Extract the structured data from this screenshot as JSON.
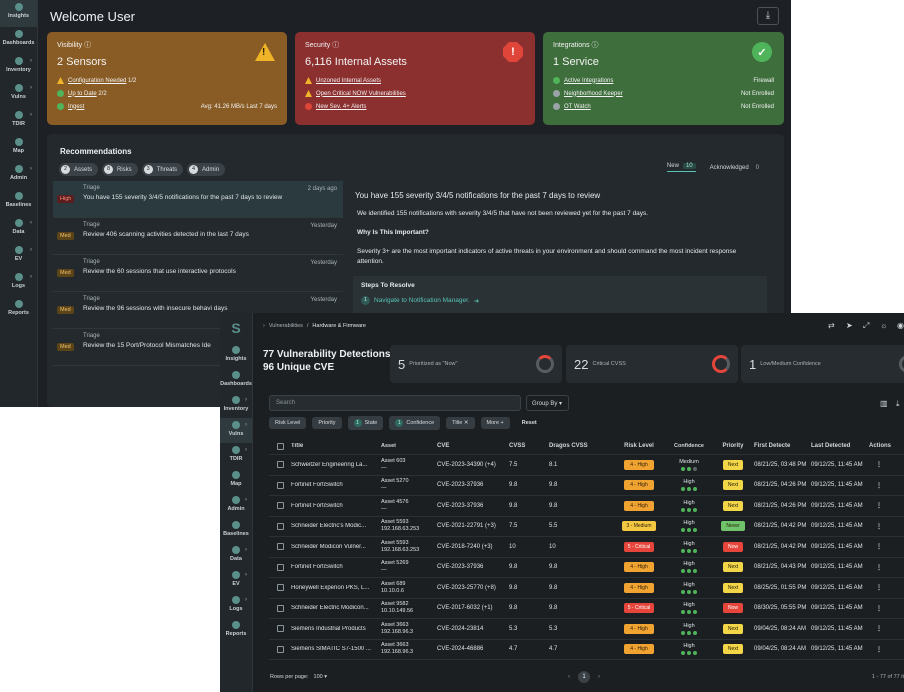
{
  "win1": {
    "nav": [
      "Insights",
      "Dashboards",
      "Inventory",
      "Vulns",
      "TDIR",
      "Map",
      "Admin",
      "Baselines",
      "Data",
      "EV",
      "Logs",
      "Reports"
    ],
    "title": "Welcome User",
    "visibility": {
      "label": "Visibility",
      "big": "2 Sensors",
      "rows": [
        {
          "text": "Configuration Needed",
          "extra": "1/2",
          "right": ""
        },
        {
          "text": "Up to Date",
          "extra": "2/2",
          "right": ""
        },
        {
          "text": "Ingest",
          "extra": "",
          "right": "Avg: 41.26 MB/s Last 7 days"
        }
      ]
    },
    "security": {
      "label": "Security",
      "big": "6,116 Internal Assets",
      "rows": [
        "Unzoned Internal Assets",
        "Open Critical NOW Vulnerabilities",
        "New Sev. 4+ Alerts"
      ]
    },
    "integrations": {
      "label": "Integrations",
      "big": "1 Service",
      "rows": [
        {
          "text": "Active Integrations",
          "right": "Firewall"
        },
        {
          "text": "Neighborhood Keeper",
          "right": "Not Enrolled"
        },
        {
          "text": "OT Watch",
          "right": "Not Enrolled"
        }
      ]
    },
    "recommendations": {
      "title": "Recommendations",
      "chips": [
        {
          "n": "2",
          "label": "Assets"
        },
        {
          "n": "8",
          "label": "Risks"
        },
        {
          "n": "3",
          "label": "Threats"
        },
        {
          "n": "4",
          "label": "Admin"
        }
      ],
      "tab_new": "New",
      "tab_new_count": "10",
      "tab_ack": "Acknowledged",
      "tab_ack_count": "0",
      "items": [
        {
          "kind": "Triage",
          "time": "2 days ago",
          "tag": "High",
          "text": "You have 155 severity 3/4/5 notifications for the past 7 days to review"
        },
        {
          "kind": "Triage",
          "time": "Yesterday",
          "tag": "Med",
          "text": "Review 406 scanning activities detected in the last 7 days"
        },
        {
          "kind": "Triage",
          "time": "Yesterday",
          "tag": "Med",
          "text": "Review the 60 sessions that use interactive protocols"
        },
        {
          "kind": "Triage",
          "time": "Yesterday",
          "tag": "Med",
          "text": "Review the 96 sessions with insecure behavi days"
        },
        {
          "kind": "Triage",
          "time": "Yesterday",
          "tag": "Med",
          "text": "Review the 15 Port/Protocol Mismatches Ide"
        }
      ],
      "detail": {
        "heading": "You have 155 severity 3/4/5 notifications for the past 7 days to review",
        "p1": "We identified 155 notifications with severity 3/4/5 that have not been reviewed yet for the past 7 days.",
        "why": "Why Is This Important?",
        "p2": "Severity 3+ are the most important indicators of active threats in your environment and should command the most incident response attention.",
        "steps_title": "Steps To Resolve",
        "step1": "Navigate to Notification Manager."
      }
    }
  },
  "win2": {
    "nav": [
      "Insights",
      "Dashboards",
      "Inventory",
      "Vulns",
      "TDIR",
      "Map",
      "Admin",
      "Baselines",
      "Data",
      "EV",
      "Logs",
      "Reports"
    ],
    "breadcrumb": [
      "Vulnerabilities",
      "/",
      "Hardware & Firmware"
    ],
    "heading1": "77 Vulnerability Detections",
    "heading2": "96 Unique CVE",
    "stats": [
      {
        "n": "5",
        "label": "Prioritized as \"Now\""
      },
      {
        "n": "22",
        "label": "Critical CVSS"
      },
      {
        "n": "1",
        "label": "Low/Medium Confidence"
      }
    ],
    "search_placeholder": "Search",
    "group_by": "Group By ▾",
    "filters": [
      {
        "n": "",
        "label": "Risk Level"
      },
      {
        "n": "",
        "label": "Priority"
      },
      {
        "n": "1",
        "label": "State"
      },
      {
        "n": "1",
        "label": "Confidence"
      },
      {
        "n": "",
        "label": "Title ✕"
      },
      {
        "n": "",
        "label": "More +"
      }
    ],
    "reset": "Reset",
    "columns": [
      "Title",
      "Asset",
      "CVE",
      "CVSS",
      "Dragos CVSS",
      "Risk Level",
      "Confidence",
      "Priority",
      "First Detecte",
      "Last Detected",
      "Actions"
    ],
    "rows": [
      {
        "title": "Schweitzer Engineering La...",
        "asset": "Asset 603",
        "ip": "—",
        "cve": "CVE-2023-34390 (+4)",
        "cvss": "7.5",
        "dcvss": "8.1",
        "risk": "4 - High",
        "conf": "Medium",
        "dots": 2,
        "prio": "Next",
        "first": "08/21/25, 03:48 PM",
        "last": "09/12/25, 11:45 AM"
      },
      {
        "title": "Fortinet FortiSwitch",
        "asset": "Asset 5270",
        "ip": "—",
        "cve": "CVE-2023-37936",
        "cvss": "9.8",
        "dcvss": "9.8",
        "risk": "4 - High",
        "conf": "High",
        "dots": 3,
        "prio": "Next",
        "first": "08/21/25, 04:26 PM",
        "last": "09/12/25, 11:45 AM"
      },
      {
        "title": "Fortinet FortiSwitch",
        "asset": "Asset 4576",
        "ip": "—",
        "cve": "CVE-2023-37936",
        "cvss": "9.8",
        "dcvss": "9.8",
        "risk": "4 - High",
        "conf": "High",
        "dots": 3,
        "prio": "Next",
        "first": "08/21/25, 04:26 PM",
        "last": "09/12/25, 11:45 AM"
      },
      {
        "title": "Schneider Electric's Modic...",
        "asset": "Asset 5593",
        "ip": "192.168.63.253",
        "cve": "CVE-2021-22791 (+3)",
        "cvss": "7.5",
        "dcvss": "5.5",
        "risk": "3 - Medium",
        "conf": "High",
        "dots": 3,
        "prio": "Never",
        "first": "08/21/25, 04:42 PM",
        "last": "09/12/25, 11:45 AM"
      },
      {
        "title": "Schneider Modicon Vulner...",
        "asset": "Asset 5593",
        "ip": "192.168.63.253",
        "cve": "CVE-2018-7240 (+3)",
        "cvss": "10",
        "dcvss": "10",
        "risk": "5 - Critical",
        "conf": "High",
        "dots": 3,
        "prio": "Now",
        "first": "08/21/25, 04:42 PM",
        "last": "09/12/25, 11:45 AM"
      },
      {
        "title": "Fortinet FortiSwitch",
        "asset": "Asset 5269",
        "ip": "—",
        "cve": "CVE-2023-37936",
        "cvss": "9.8",
        "dcvss": "9.8",
        "risk": "4 - High",
        "conf": "High",
        "dots": 3,
        "prio": "Next",
        "first": "08/21/25, 04:43 PM",
        "last": "09/12/25, 11:45 AM"
      },
      {
        "title": "Honeywell Experion PKS, L...",
        "asset": "Asset 689",
        "ip": "10.10.0.6",
        "cve": "CVE-2023-25770 (+8)",
        "cvss": "9.8",
        "dcvss": "9.8",
        "risk": "4 - High",
        "conf": "High",
        "dots": 3,
        "prio": "Next",
        "first": "08/25/25, 01:55 PM",
        "last": "09/12/25, 11:45 AM"
      },
      {
        "title": "Schneider Electric Modicon...",
        "asset": "Asset 9582",
        "ip": "10.10.149.56",
        "cve": "CVE-2017-6032 (+1)",
        "cvss": "9.8",
        "dcvss": "9.8",
        "risk": "5 - Critical",
        "conf": "High",
        "dots": 3,
        "prio": "Now",
        "first": "08/30/25, 05:55 PM",
        "last": "09/12/25, 11:45 AM"
      },
      {
        "title": "Siemens Industrial Products",
        "asset": "Asset 3663",
        "ip": "192.168.96.3",
        "cve": "CVE-2024-23814",
        "cvss": "5.3",
        "dcvss": "5.3",
        "risk": "4 - High",
        "conf": "High",
        "dots": 3,
        "prio": "Next",
        "first": "09/04/25, 08:24 AM",
        "last": "09/12/25, 11:45 AM"
      },
      {
        "title": "Siemens SIMATIC S7-1500 ...",
        "asset": "Asset 3663",
        "ip": "192.168.96.3",
        "cve": "CVE-2024-46886",
        "cvss": "4.7",
        "dcvss": "4.7",
        "risk": "4 - High",
        "conf": "High",
        "dots": 3,
        "prio": "Next",
        "first": "09/04/25, 08:24 AM",
        "last": "09/12/25, 11:45 AM"
      }
    ],
    "rows_per_page_label": "Rows per page:",
    "rows_per_page": "100 ▾",
    "page": "1",
    "range": "1 - 77 of 77 it",
    "colors": {
      "high": "#f0a331",
      "medium": "#f5c842",
      "critical": "#e5453a",
      "next": "#f3d548",
      "now": "#e5453a",
      "never": "#6fc36a"
    }
  }
}
